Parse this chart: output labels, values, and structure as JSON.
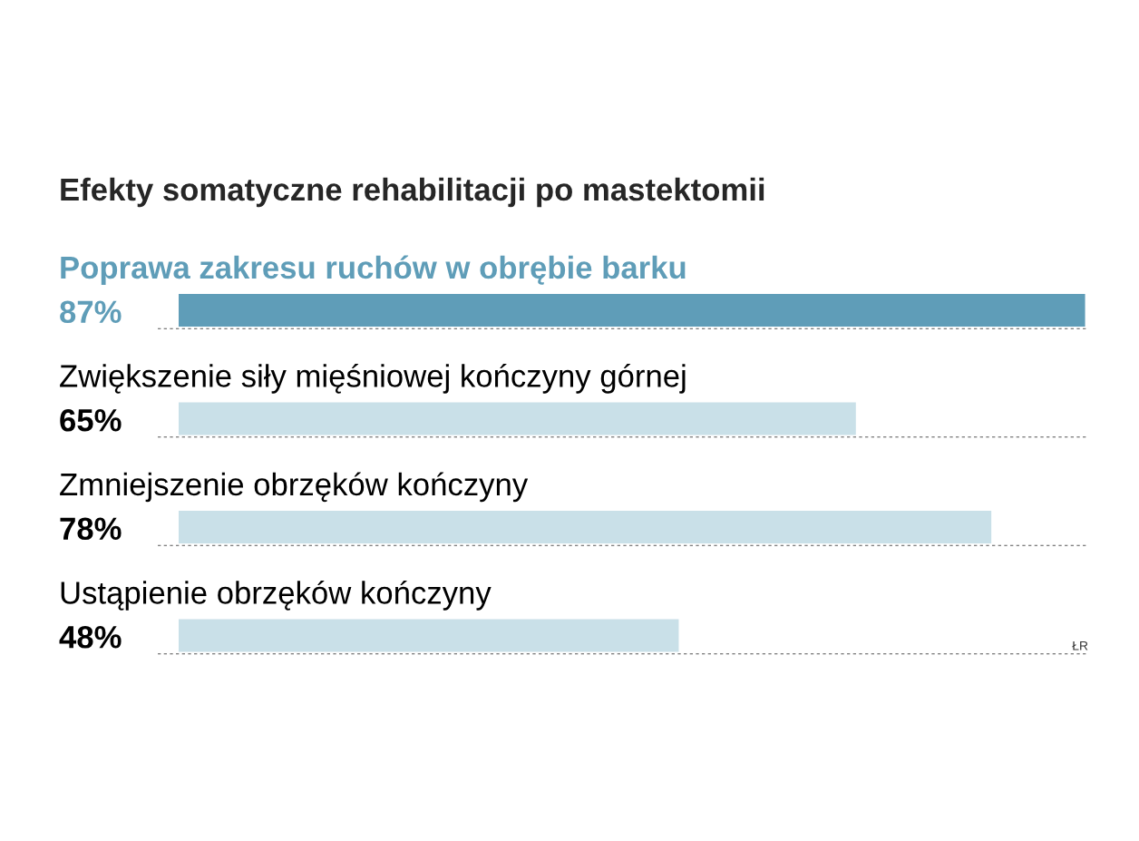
{
  "chart_data": {
    "type": "bar",
    "orientation": "horizontal",
    "title": "Efekty somatyczne rehabilitacji po mastektomii",
    "categories": [
      "Poprawa zakresu ruchów w obrębie barku",
      "Zwiększenie siły mięśniowej kończyny górnej",
      "Zmniejszenie obrzęków kończyny",
      "Ustąpienie obrzęków kończyny"
    ],
    "values": [
      87,
      65,
      78,
      48
    ],
    "value_labels": [
      "87%",
      "65%",
      "78%",
      "48%"
    ],
    "colors": [
      "#5f9db8",
      "#c9e0e8",
      "#c9e0e8",
      "#c9e0e8"
    ],
    "xlim": [
      0,
      87.3
    ],
    "tick_labels": false,
    "legend": false,
    "annotations": [
      "ŁR"
    ]
  }
}
